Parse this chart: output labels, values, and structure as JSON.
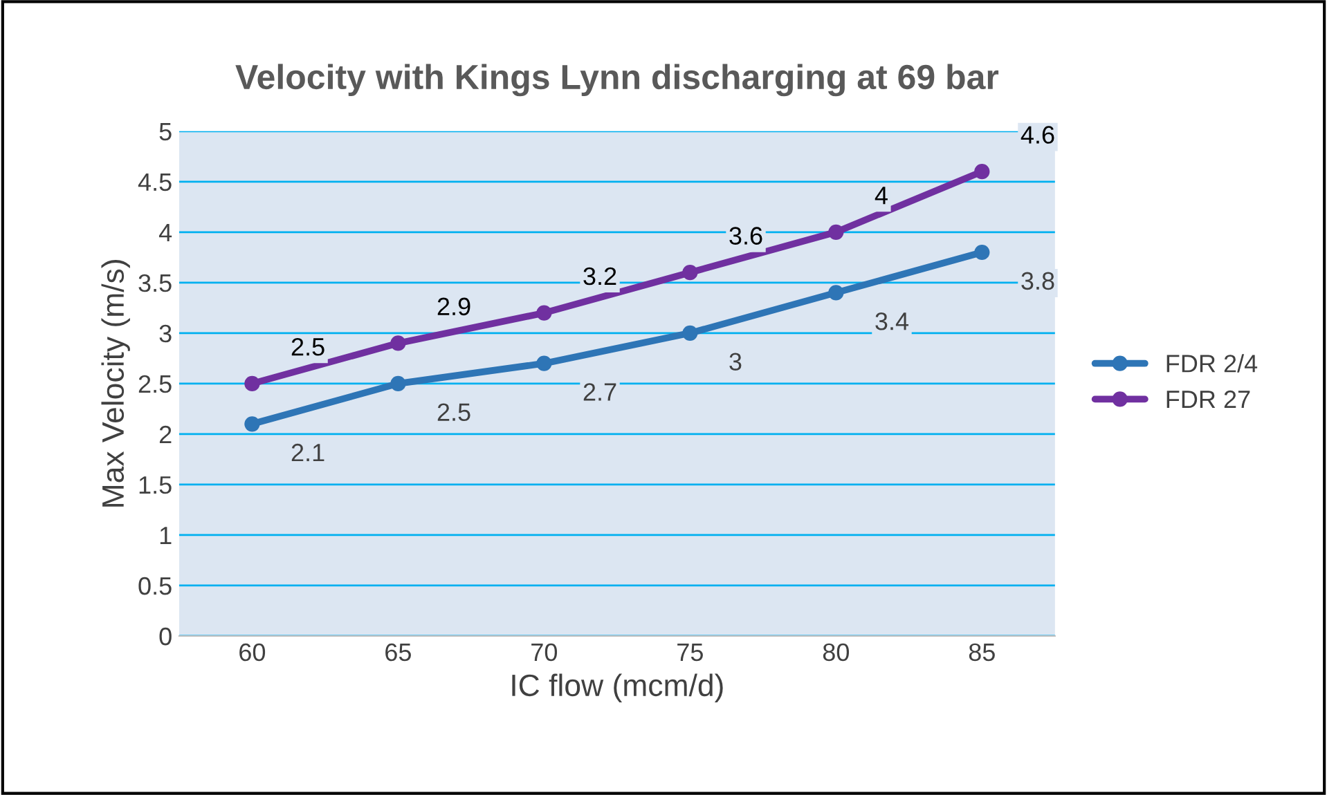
{
  "chart_data": {
    "type": "line",
    "title": "Velocity with Kings Lynn discharging at 69 bar",
    "xlabel": "IC flow (mcm/d)",
    "ylabel": "Max Velocity (m/s)",
    "categories": [
      "60",
      "65",
      "70",
      "75",
      "80",
      "85"
    ],
    "series": [
      {
        "name": "FDR 2/4",
        "color": "#2e75b6",
        "values": [
          2.1,
          2.5,
          2.7,
          3,
          3.4,
          3.8
        ]
      },
      {
        "name": "FDR 27",
        "color": "#7030a0",
        "values": [
          2.5,
          2.9,
          3.2,
          3.6,
          4,
          4.6
        ]
      }
    ],
    "ylim": [
      0,
      5
    ],
    "yticks": [
      0,
      0.5,
      1,
      1.5,
      2,
      2.5,
      3,
      3.5,
      4,
      4.5,
      5
    ],
    "grid": "y",
    "legend": "right",
    "marker": "circle",
    "line_style": "solid",
    "data_labels": true
  }
}
